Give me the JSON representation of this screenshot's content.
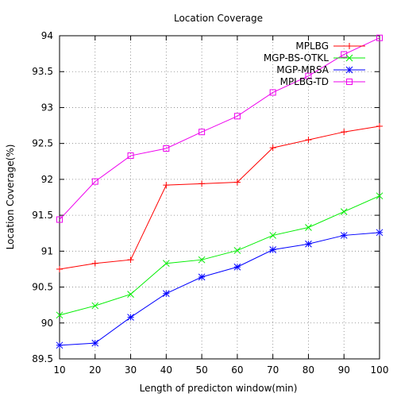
{
  "chart_data": {
    "type": "line",
    "title": "Location Coverage",
    "xlabel": "Length of predicton window(min)",
    "ylabel": "Location Coverage(%)",
    "x": [
      10,
      20,
      30,
      40,
      50,
      60,
      70,
      80,
      90,
      100
    ],
    "xlim": [
      10,
      100
    ],
    "ylim": [
      89.5,
      94
    ],
    "xticks": [
      "10",
      "20",
      "30",
      "40",
      "50",
      "60",
      "70",
      "80",
      "90",
      "100"
    ],
    "yticks": [
      "89.5",
      "90",
      "90.5",
      "91",
      "91.5",
      "92",
      "92.5",
      "93",
      "93.5",
      "94"
    ],
    "grid": true,
    "legend_position": "top-right",
    "series": [
      {
        "name": "MPLBG",
        "color": "#ff0000",
        "marker": "plus",
        "values": [
          90.75,
          90.83,
          90.88,
          91.92,
          91.94,
          91.96,
          92.44,
          92.55,
          92.66,
          92.74
        ]
      },
      {
        "name": "MGP-BS-OTKL",
        "color": "#00ee00",
        "marker": "cross",
        "values": [
          90.11,
          90.24,
          90.4,
          90.83,
          90.88,
          91.01,
          91.22,
          91.33,
          91.55,
          91.77
        ]
      },
      {
        "name": "MGP-MRSA",
        "color": "#0000ff",
        "marker": "star",
        "values": [
          89.69,
          89.72,
          90.08,
          90.41,
          90.64,
          90.78,
          91.02,
          91.1,
          91.22,
          91.26
        ]
      },
      {
        "name": "MPLBG-TD",
        "color": "#ee00ee",
        "marker": "square",
        "values": [
          91.44,
          91.97,
          92.33,
          92.43,
          92.66,
          92.88,
          93.21,
          93.44,
          93.74,
          93.97
        ]
      }
    ]
  }
}
